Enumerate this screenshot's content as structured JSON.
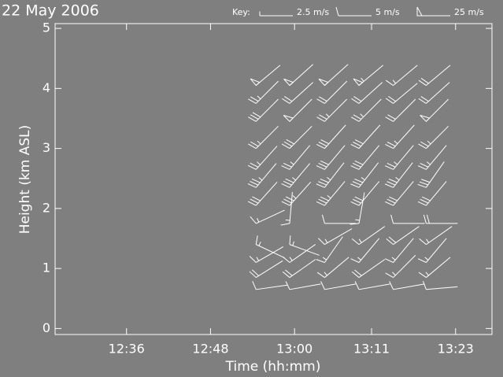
{
  "chart_data": {
    "type": "barb",
    "title": "22 May 2006",
    "key": {
      "title": "Key:",
      "items": [
        {
          "value": 2.5,
          "label": "2.5 m/s"
        },
        {
          "value": 5,
          "label": "5 m/s"
        },
        {
          "value": 25,
          "label": "25 m/s"
        }
      ]
    },
    "x_label": "Time (hh:mm)",
    "y_label": "Height (km ASL)",
    "xlim": [
      745.8,
      808.2
    ],
    "xticks": [
      {
        "value": 756,
        "label": "12:36"
      },
      {
        "value": 768,
        "label": "12:48"
      },
      {
        "value": 780,
        "label": "13:00"
      },
      {
        "value": 791,
        "label": "13:11"
      },
      {
        "value": 803,
        "label": "13:23"
      }
    ],
    "ylim": [
      -0.1,
      5.08
    ],
    "yticks": [
      0,
      1,
      2,
      3,
      4,
      5
    ],
    "color": "#ffffff",
    "x": [
      774.5,
      774.5,
      774.5,
      774.5,
      774.5,
      774.5,
      774.5,
      774.5,
      774.5,
      774.5,
      774.5,
      774.5,
      779.3,
      779.3,
      779.3,
      779.3,
      779.3,
      779.3,
      779.3,
      779.3,
      779.3,
      779.3,
      779.3,
      779.3,
      784.3,
      784.3,
      784.3,
      784.3,
      784.3,
      784.3,
      784.3,
      784.3,
      784.3,
      784.3,
      784.3,
      784.3,
      789.2,
      789.2,
      789.2,
      789.2,
      789.2,
      789.2,
      789.2,
      789.2,
      789.2,
      789.2,
      789.2,
      789.2,
      794.1,
      794.1,
      794.1,
      794.1,
      794.1,
      794.1,
      794.1,
      794.1,
      794.1,
      794.1,
      794.1,
      794.1,
      798.8,
      798.8,
      798.8,
      798.8,
      798.8,
      798.8,
      798.8,
      798.8,
      798.8,
      798.8,
      798.8,
      798.8
    ],
    "y": [
      0.65,
      0.85,
      1.1,
      1.4,
      1.75,
      2.05,
      2.35,
      2.65,
      3.0,
      3.45,
      3.75,
      4.05,
      0.65,
      0.85,
      1.1,
      1.4,
      1.75,
      2.05,
      2.35,
      2.65,
      3.0,
      3.45,
      3.75,
      4.05,
      0.65,
      0.85,
      1.1,
      1.4,
      1.75,
      2.05,
      2.35,
      2.65,
      3.0,
      3.45,
      3.75,
      4.05,
      0.65,
      0.85,
      1.1,
      1.4,
      1.75,
      2.05,
      2.35,
      2.65,
      3.0,
      3.45,
      3.75,
      4.05,
      0.65,
      0.85,
      1.1,
      1.4,
      1.75,
      2.05,
      2.35,
      2.65,
      3.0,
      3.45,
      3.75,
      4.05,
      0.65,
      0.85,
      1.1,
      1.4,
      1.75,
      2.05,
      2.35,
      2.65,
      3.0,
      3.45,
      3.75,
      4.05
    ],
    "speed": [
      6,
      11,
      9,
      8,
      9,
      17,
      18,
      13,
      14,
      15,
      14,
      27,
      7,
      10,
      9,
      8,
      8,
      18,
      19,
      14,
      15,
      27,
      12,
      27,
      6,
      9,
      8,
      9,
      6,
      18,
      18,
      15,
      15,
      13,
      11,
      27,
      7,
      10,
      9,
      8,
      8,
      17,
      18,
      15,
      15,
      14,
      12,
      28,
      6,
      9,
      8,
      10,
      7,
      17,
      18,
      13,
      14,
      11,
      10,
      9,
      6,
      9,
      8,
      9,
      10,
      15,
      17,
      14,
      13,
      27,
      12,
      11
    ],
    "direction": [
      82,
      58,
      60,
      115,
      65,
      42,
      40,
      42,
      45,
      45,
      45,
      50,
      80,
      55,
      55,
      110,
      5,
      42,
      40,
      40,
      45,
      45,
      48,
      48,
      80,
      50,
      35,
      60,
      90,
      40,
      38,
      40,
      42,
      45,
      45,
      48,
      80,
      55,
      40,
      55,
      10,
      40,
      38,
      40,
      42,
      45,
      48,
      50,
      80,
      45,
      40,
      55,
      90,
      40,
      38,
      40,
      42,
      45,
      50,
      50,
      85,
      50,
      40,
      55,
      90,
      40,
      35,
      40,
      45,
      45,
      48,
      50
    ]
  }
}
